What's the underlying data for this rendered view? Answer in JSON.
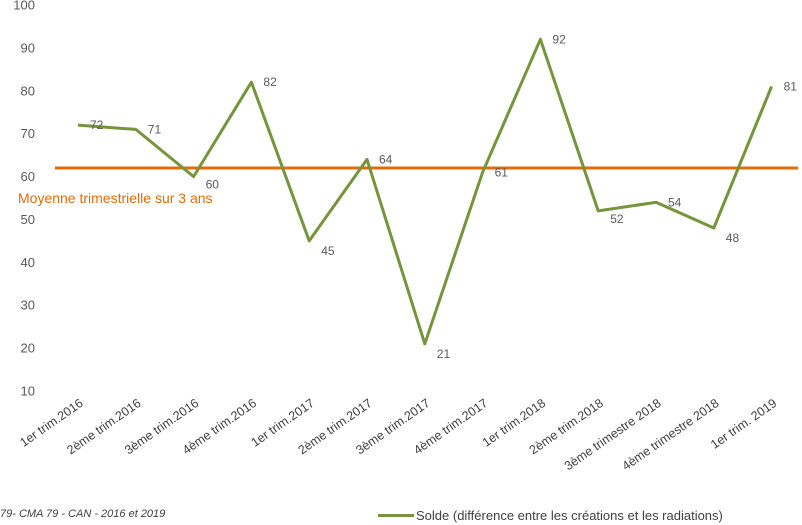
{
  "chart_data": {
    "type": "line",
    "title": "",
    "xlabel": "",
    "ylabel": "",
    "ylim": [
      10,
      100
    ],
    "yticks": [
      "10",
      "20",
      "30",
      "40",
      "50",
      "60",
      "70",
      "80",
      "90",
      "100"
    ],
    "grid": false,
    "legend_position": "bottom-right",
    "categories": [
      "1er trim.2016",
      "2ème trim.2016",
      "3ème trim.2016",
      "4ème trim.2016",
      "1er trim.2017",
      "2ème trim.2017",
      "3ème trim.2017",
      "4ème trim.2017",
      "1er trim.2018",
      "2ème trim.2018",
      "3ème trimestre 2018",
      "4ème trimestre 2018",
      "1er trim. 2019"
    ],
    "series": [
      {
        "name": "Solde (différence entre les créations et les radiations)",
        "color": "#77933C",
        "values": [
          72,
          71,
          60,
          82,
          45,
          64,
          21,
          61,
          92,
          52,
          54,
          48,
          81
        ],
        "labels": [
          "72",
          "71",
          "60",
          "82",
          "45",
          "64",
          "21",
          "61",
          "92",
          "52",
          "54",
          "48",
          "81"
        ]
      }
    ],
    "reference_line": {
      "label": "Moyenne trimestrielle sur 3 ans",
      "value": 62,
      "color": "#E36C0A"
    }
  },
  "footer": {
    "source": "79- CMA 79 - CAN - 2016 et 2019"
  }
}
